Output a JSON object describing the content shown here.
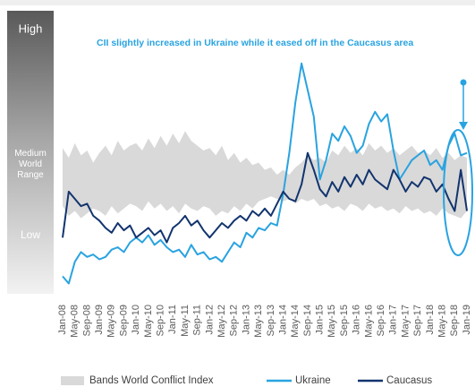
{
  "chart_data": {
    "type": "line",
    "annotation": "CII slightly increased in Ukraine while it eased off in the Caucasus area",
    "range_labels": [
      "High",
      "Medium World Range",
      "Low"
    ],
    "categories": [
      "Jan-08",
      null,
      "May-08",
      null,
      "Sep-08",
      null,
      "Jan-09",
      null,
      "May-09",
      null,
      "Sep-09",
      null,
      "Jan-10",
      null,
      "May-10",
      null,
      "Sep-10",
      null,
      "Jan-11",
      null,
      "May-11",
      null,
      "Sep-11",
      null,
      "Jan-12",
      null,
      "May-12",
      null,
      "Sep-12",
      null,
      "Jan-13",
      null,
      "May-13",
      null,
      "Sep-13",
      null,
      "Jan-14",
      null,
      "May-14",
      null,
      "Sep-14",
      null,
      "Jan-15",
      null,
      "May-15",
      null,
      "Sep-15",
      null,
      "Jan-16",
      null,
      "May-16",
      null,
      "Sep-16",
      null,
      "Jan-17",
      null,
      "May-17",
      null,
      "Sep-17",
      null,
      "Jan-18",
      null,
      "May-18",
      null,
      "Sep-18",
      null,
      "Jan-19"
    ],
    "ylim": [
      0,
      100
    ],
    "series": [
      {
        "name": "Bands World Conflict Index",
        "color": "#d9d9d9",
        "high": [
          61,
          57,
          63,
          58,
          60,
          55,
          59,
          62,
          58,
          64,
          60,
          62,
          63,
          60,
          65,
          61,
          66,
          62,
          67,
          63,
          68,
          64,
          62,
          60,
          61,
          58,
          62,
          56,
          59,
          55,
          57,
          54,
          55,
          52,
          53,
          50,
          52,
          50,
          53,
          55,
          58,
          56,
          57,
          55,
          60,
          58,
          62,
          59,
          61,
          58,
          63,
          60,
          62,
          59,
          61,
          58,
          60,
          62,
          59,
          60,
          58,
          61,
          57,
          59,
          56,
          58,
          57
        ],
        "low": [
          37,
          33,
          35,
          32,
          34,
          36,
          35,
          33,
          37,
          34,
          36,
          38,
          37,
          35,
          39,
          36,
          38,
          35,
          37,
          34,
          38,
          36,
          35,
          37,
          36,
          33,
          35,
          34,
          37,
          35,
          38,
          36,
          39,
          40,
          41,
          40,
          39,
          40,
          38,
          40,
          39,
          40,
          37,
          38,
          36,
          37,
          35,
          38,
          37,
          35,
          38,
          36,
          37,
          35,
          36,
          34,
          37,
          35,
          36,
          34,
          35,
          33,
          36,
          34,
          33,
          32,
          35
        ]
      },
      {
        "name": "Ukraine",
        "color": "#29a3e0",
        "values": [
          8,
          5,
          14,
          18,
          16,
          17,
          15,
          16,
          19,
          20,
          18,
          22,
          24,
          22,
          25,
          21,
          23,
          20,
          18,
          19,
          16,
          21,
          17,
          18,
          15,
          16,
          14,
          18,
          22,
          20,
          26,
          24,
          28,
          27,
          30,
          29,
          42,
          59,
          80,
          96,
          85,
          74,
          48,
          56,
          67,
          64,
          70,
          66,
          59,
          62,
          71,
          76,
          72,
          75,
          60,
          48,
          52,
          56,
          58,
          60,
          54,
          56,
          52,
          62,
          67,
          58,
          59
        ]
      },
      {
        "name": "Caucasus",
        "color": "#12346e",
        "values": [
          24,
          43,
          40,
          37,
          38,
          33,
          31,
          28,
          26,
          30,
          27,
          29,
          24,
          26,
          28,
          25,
          27,
          22,
          28,
          30,
          33,
          29,
          31,
          27,
          24,
          27,
          30,
          28,
          31,
          33,
          31,
          35,
          33,
          36,
          33,
          38,
          43,
          40,
          39,
          46,
          59,
          52,
          44,
          41,
          47,
          43,
          49,
          45,
          50,
          46,
          52,
          48,
          46,
          44,
          52,
          48,
          43,
          47,
          45,
          49,
          48,
          43,
          46,
          40,
          35,
          52,
          35
        ]
      }
    ]
  }
}
